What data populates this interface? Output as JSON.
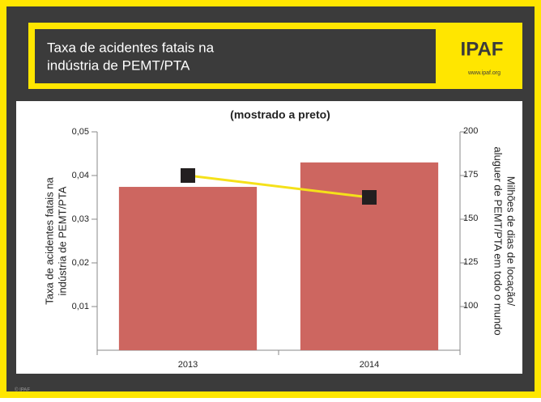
{
  "header": {
    "title": [
      "Taxa de acidentes fatais na",
      "indústria de PEMT/PTA"
    ],
    "logo": "IPAF",
    "url": "www.ipaf.org"
  },
  "footer": "© IPAF",
  "chart_data": {
    "type": "bar",
    "title": "(mostrado a preto)",
    "categories": [
      "2013",
      "2014"
    ],
    "series": [
      {
        "name": "Taxa de acidentes fatais",
        "color": "#cd6660",
        "values": [
          0.0374,
          0.043
        ]
      },
      {
        "name": "Milhões de dias de locação",
        "color": "#f5e11a",
        "marker_color": "#231f20",
        "type": "line",
        "axis": "y2",
        "values": [
          175,
          162.5
        ]
      }
    ],
    "ylabel": [
      "Taxa de acidentes fatais na",
      "indústria de PEMT/PTA"
    ],
    "y2label": [
      "Milhões de dias de locação/",
      "aluguer de PEMT/PTA em todo o mundo"
    ],
    "ylim": [
      0,
      0.05
    ],
    "yticks": [
      {
        "value": 0.01,
        "label": "0,01"
      },
      {
        "value": 0.02,
        "label": "0,02"
      },
      {
        "value": 0.03,
        "label": "0,03"
      },
      {
        "value": 0.04,
        "label": "0,04"
      },
      {
        "value": 0.05,
        "label": "0,05"
      }
    ],
    "y2lim": [
      75,
      200
    ],
    "y2ticks": [
      100,
      125,
      150,
      175,
      200
    ]
  }
}
